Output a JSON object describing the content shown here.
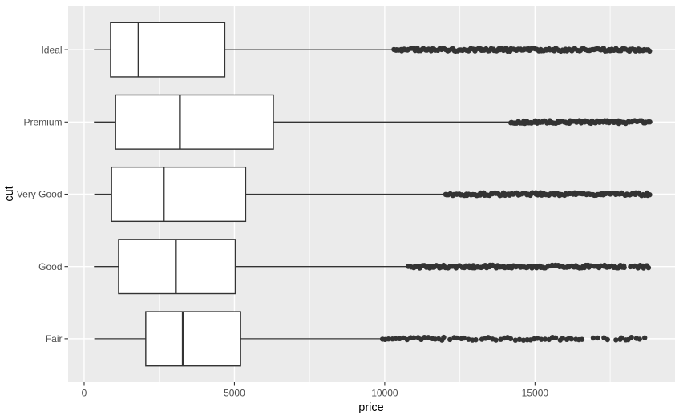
{
  "figure": {
    "description": "Boxplot of diamond price by cut quality"
  },
  "chart_data": {
    "type": "boxplot",
    "orientation": "horizontal",
    "title": "",
    "xlabel": "price",
    "ylabel": "cut",
    "xlim": [
      -533,
      19658
    ],
    "x_ticks": [
      0,
      5000,
      10000,
      15000
    ],
    "x_tick_labels": [
      "0",
      "5000",
      "10000",
      "15000"
    ],
    "x_minor_ticks": [
      2500,
      7500,
      12500,
      17500
    ],
    "grid": "major-and-minor-x, major-y, white on gray panel",
    "legend": "none",
    "categories_top_to_bottom": [
      "Ideal",
      "Premium",
      "Very Good",
      "Good",
      "Fair"
    ],
    "series": [
      {
        "name": "Ideal",
        "min": 326,
        "q1": 878,
        "median": 1810,
        "q3": 4679,
        "whisker_high": 10280,
        "outlier_density": "dense",
        "outlier_clusters": [
          [
            10300,
            18810
          ]
        ]
      },
      {
        "name": "Premium",
        "min": 326,
        "q1": 1046,
        "median": 3185,
        "q3": 6296,
        "whisker_high": 14150,
        "outlier_density": "dense",
        "outlier_clusters": [
          [
            14170,
            18820
          ]
        ]
      },
      {
        "name": "Very Good",
        "min": 336,
        "q1": 912,
        "median": 2648,
        "q3": 5373,
        "whisker_high": 12010,
        "outlier_density": "dense",
        "outlier_clusters": [
          [
            12030,
            18820
          ]
        ]
      },
      {
        "name": "Good",
        "min": 327,
        "q1": 1145,
        "median": 3050,
        "q3": 5028,
        "whisker_high": 10760,
        "outlier_density": "dense",
        "outlier_clusters": [
          [
            10780,
            16870
          ],
          [
            16990,
            17180
          ],
          [
            17270,
            17990
          ],
          [
            18180,
            18790
          ]
        ]
      },
      {
        "name": "Fair",
        "min": 337,
        "q1": 2050,
        "median": 3282,
        "q3": 5206,
        "whisker_high": 9880,
        "outlier_density": "sparse",
        "outlier_clusters": [
          [
            9900,
            11690
          ],
          [
            11790,
            11980
          ],
          [
            12150,
            12310
          ],
          [
            12410,
            13030
          ],
          [
            13210,
            13960
          ],
          [
            14070,
            14200
          ],
          [
            14340,
            14470
          ],
          [
            14600,
            15350
          ],
          [
            15480,
            16150
          ],
          [
            16230,
            16550
          ],
          [
            16950,
            17090
          ],
          [
            17270,
            17410
          ],
          [
            17700,
            17810
          ],
          [
            17890,
            18020
          ],
          [
            18100,
            18230
          ],
          [
            18370,
            18630
          ]
        ]
      }
    ],
    "colors": {
      "panel_bg": "#EBEBEB",
      "grid": "#FFFFFF",
      "box_stroke": "#333333",
      "box_fill": "#FFFFFF",
      "outlier": "#333333",
      "tick_mark": "#333333",
      "tick_label": "#4D4D4D",
      "axis_title": "#000000"
    }
  }
}
